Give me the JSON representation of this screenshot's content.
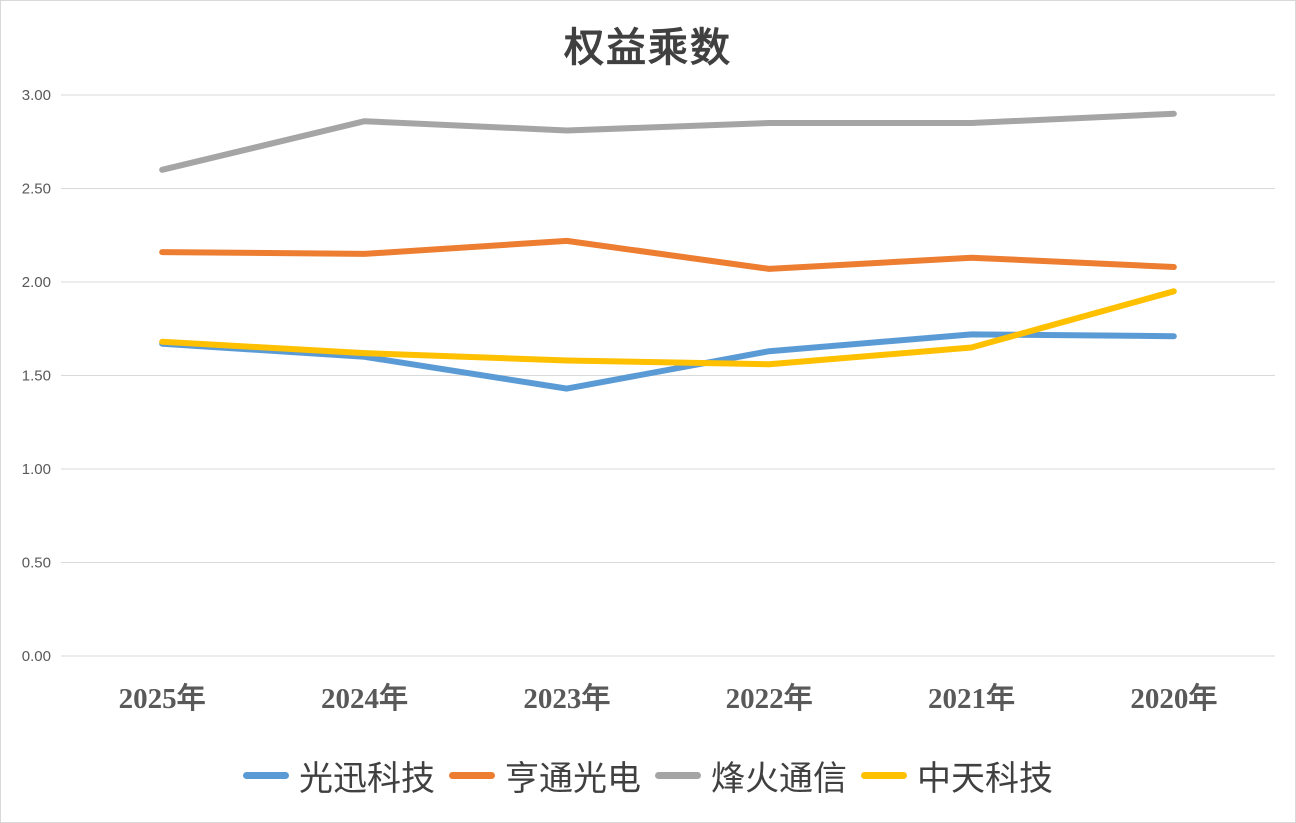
{
  "chart_data": {
    "type": "line",
    "title": "权益乘数",
    "categories": [
      "2025年",
      "2024年",
      "2023年",
      "2022年",
      "2021年",
      "2020年"
    ],
    "series": [
      {
        "name": "光迅科技",
        "color": "#5B9BD5",
        "values": [
          1.67,
          1.6,
          1.43,
          1.63,
          1.72,
          1.71
        ]
      },
      {
        "name": "亨通光电",
        "color": "#ED7D31",
        "values": [
          2.16,
          2.15,
          2.22,
          2.07,
          2.13,
          2.08
        ]
      },
      {
        "name": "烽火通信",
        "color": "#A5A5A5",
        "values": [
          2.6,
          2.86,
          2.81,
          2.85,
          2.85,
          2.9
        ]
      },
      {
        "name": "中天科技",
        "color": "#FFC000",
        "values": [
          1.68,
          1.62,
          1.58,
          1.56,
          1.65,
          1.95
        ]
      }
    ],
    "ylim": [
      0,
      3
    ],
    "ytick_labels": [
      "0.00",
      "0.50",
      "1.00",
      "1.50",
      "2.00",
      "2.50",
      "3.00"
    ],
    "ytick_values": [
      0,
      0.5,
      1.0,
      1.5,
      2.0,
      2.5,
      3.0
    ],
    "xlabel": "",
    "ylabel": "",
    "grid": "horizontal",
    "grid_color": "#D9D9D9",
    "axis_label_color": "#595959",
    "title_color": "#404040",
    "legend_position": "bottom"
  }
}
